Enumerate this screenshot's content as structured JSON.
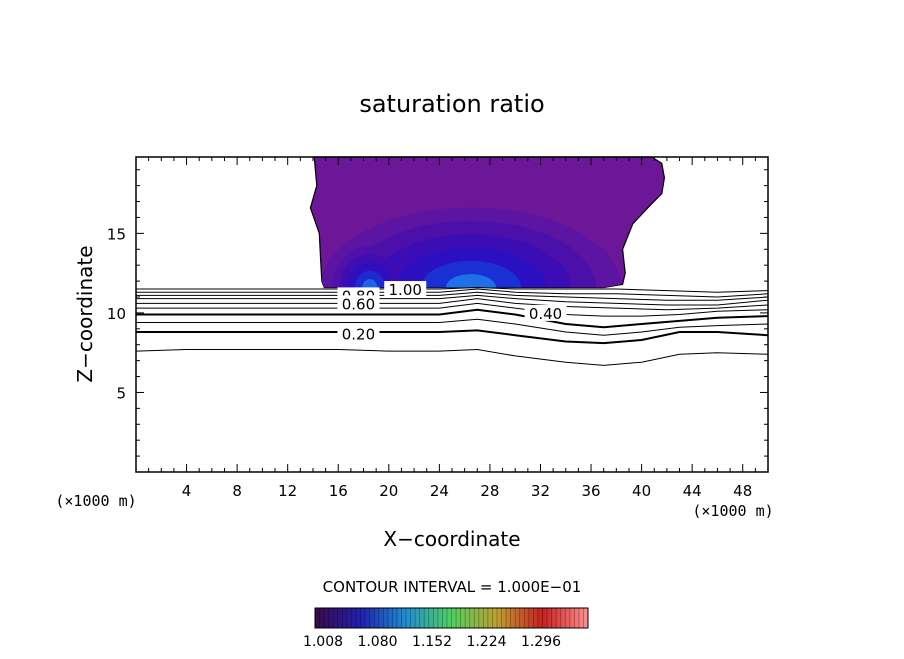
{
  "chart_data": {
    "type": "contour",
    "title": "saturation ratio",
    "xlabel": "X−coordinate",
    "ylabel": "Z−coordinate",
    "x_unit_label": "(×1000 m)",
    "xlim": [
      0,
      50
    ],
    "ylim": [
      0,
      19.8
    ],
    "x_ticks": [
      4,
      8,
      12,
      16,
      20,
      24,
      28,
      32,
      36,
      40,
      44,
      48
    ],
    "y_ticks": [
      5,
      10,
      15
    ],
    "contour_interval_label": "CONTOUR INTERVAL = 1.000E−01",
    "colorbar": {
      "tick_labels": [
        "1.008",
        "1.080",
        "1.152",
        "1.224",
        "1.296"
      ],
      "colors": [
        "#3a0a4a",
        "#2020b0",
        "#1f8fd0",
        "#50d060",
        "#c0a030",
        "#c82020",
        "#ff9090"
      ]
    },
    "contour_labels": [
      {
        "text": "1.00",
        "x": 21.3,
        "y": 11.5
      },
      {
        "text": "0.80",
        "x": 17.6,
        "y": 11.1
      },
      {
        "text": "0.60",
        "x": 17.6,
        "y": 10.6
      },
      {
        "text": "0.40",
        "x": 32.4,
        "y": 10.0
      },
      {
        "text": "0.20",
        "x": 17.6,
        "y": 8.7
      }
    ],
    "contours": [
      {
        "level": 1.0,
        "x": [
          0,
          4,
          8,
          12,
          16,
          20,
          24,
          27,
          30,
          34,
          38,
          42,
          46,
          50
        ],
        "y": [
          11.5,
          11.5,
          11.5,
          11.5,
          11.5,
          11.5,
          11.5,
          11.6,
          11.5,
          11.5,
          11.5,
          11.4,
          11.3,
          11.4
        ]
      },
      {
        "level": 0.9,
        "x": [
          0,
          4,
          8,
          12,
          16,
          20,
          24,
          27,
          30,
          34,
          38,
          42,
          46,
          50
        ],
        "y": [
          11.3,
          11.3,
          11.3,
          11.3,
          11.3,
          11.3,
          11.3,
          11.5,
          11.3,
          11.2,
          11.2,
          11.1,
          11.0,
          11.2
        ]
      },
      {
        "level": 0.8,
        "x": [
          0,
          4,
          8,
          12,
          16,
          20,
          24,
          27,
          30,
          34,
          38,
          42,
          46,
          50
        ],
        "y": [
          11.1,
          11.1,
          11.1,
          11.1,
          11.1,
          11.1,
          11.1,
          11.3,
          11.1,
          11.0,
          10.9,
          10.8,
          10.8,
          11.0
        ]
      },
      {
        "level": 0.7,
        "x": [
          0,
          4,
          8,
          12,
          16,
          20,
          24,
          27,
          30,
          34,
          38,
          42,
          46,
          50
        ],
        "y": [
          10.9,
          10.9,
          10.9,
          10.9,
          10.9,
          10.9,
          10.9,
          11.1,
          10.9,
          10.7,
          10.6,
          10.5,
          10.5,
          10.8
        ]
      },
      {
        "level": 0.6,
        "x": [
          0,
          4,
          8,
          12,
          16,
          20,
          24,
          27,
          30,
          34,
          38,
          42,
          46,
          50
        ],
        "y": [
          10.6,
          10.6,
          10.6,
          10.6,
          10.6,
          10.6,
          10.6,
          10.9,
          10.6,
          10.4,
          10.3,
          10.2,
          10.3,
          10.5
        ]
      },
      {
        "level": 0.5,
        "x": [
          0,
          4,
          8,
          12,
          16,
          20,
          24,
          27,
          30,
          34,
          37,
          40,
          43,
          46,
          50
        ],
        "y": [
          10.3,
          10.3,
          10.3,
          10.3,
          10.3,
          10.3,
          10.3,
          10.6,
          10.3,
          9.9,
          9.8,
          9.8,
          9.9,
          10.1,
          10.2
        ]
      },
      {
        "level": 0.4,
        "x": [
          0,
          4,
          8,
          12,
          16,
          20,
          24,
          27,
          30,
          34,
          37,
          40,
          43,
          46,
          50
        ],
        "y": [
          9.9,
          9.9,
          9.9,
          9.9,
          9.9,
          9.9,
          9.9,
          10.2,
          9.9,
          9.3,
          9.1,
          9.3,
          9.5,
          9.7,
          9.8
        ]
      },
      {
        "level": 0.3,
        "x": [
          0,
          4,
          8,
          12,
          16,
          20,
          24,
          27,
          30,
          34,
          37,
          40,
          43,
          46,
          50
        ],
        "y": [
          9.4,
          9.4,
          9.4,
          9.4,
          9.4,
          9.4,
          9.4,
          9.6,
          9.3,
          8.8,
          8.6,
          8.8,
          9.1,
          9.2,
          9.3
        ]
      },
      {
        "level": 0.2,
        "x": [
          0,
          4,
          8,
          12,
          16,
          20,
          24,
          27,
          30,
          34,
          37,
          40,
          43,
          46,
          50
        ],
        "y": [
          8.8,
          8.8,
          8.8,
          8.8,
          8.8,
          8.8,
          8.8,
          8.9,
          8.6,
          8.2,
          8.1,
          8.3,
          8.8,
          8.8,
          8.6
        ]
      },
      {
        "level": 0.1,
        "x": [
          0,
          4,
          8,
          12,
          16,
          20,
          24,
          27,
          30,
          34,
          37,
          40,
          43,
          46,
          50
        ],
        "y": [
          7.6,
          7.7,
          7.7,
          7.7,
          7.7,
          7.6,
          7.6,
          7.7,
          7.3,
          6.9,
          6.7,
          6.9,
          7.4,
          7.5,
          7.4
        ]
      }
    ],
    "filled_region": {
      "outline_x": [
        14.1,
        14.3,
        13.8,
        14.5,
        14.6,
        14.7,
        14.9,
        15.5,
        30,
        37,
        38.5,
        38.7,
        38.5,
        39.3,
        40.6,
        41.6,
        41.8,
        41.6,
        40.8,
        14.1
      ],
      "outline_y": [
        19.8,
        18.0,
        16.6,
        15.0,
        13.5,
        12.0,
        11.6,
        11.6,
        11.6,
        11.6,
        11.8,
        12.5,
        14.0,
        15.6,
        16.7,
        17.5,
        18.5,
        19.4,
        19.8,
        19.8
      ],
      "base_color": "#6c1698",
      "core_colors": [
        "#5c14a2",
        "#4c10aa",
        "#3c0cb4",
        "#2a10c0",
        "#1a30d4",
        "#1f70e8"
      ]
    }
  }
}
